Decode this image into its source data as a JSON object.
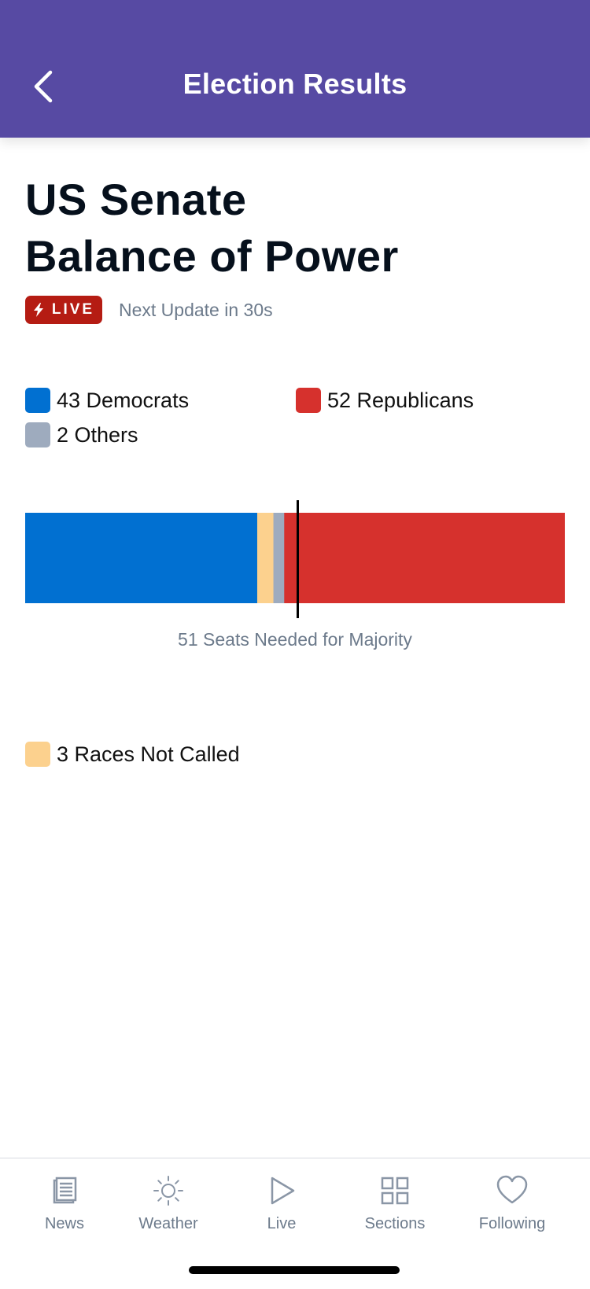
{
  "header": {
    "title": "Election Results",
    "background_color": "#574aa3"
  },
  "page": {
    "title_line1": "US Senate",
    "title_line2": "Balance of Power"
  },
  "status": {
    "live_label": "LIVE",
    "next_update": "Next Update in 30s"
  },
  "legend": {
    "democrats": {
      "label": "43 Democrats",
      "color": "#0170d1"
    },
    "republicans": {
      "label": "52 Republicans",
      "color": "#d6312d"
    },
    "others": {
      "label": "2 Others",
      "color": "#9eabbe"
    },
    "not_called": {
      "label": "3 Races Not Called",
      "color": "#fcd18e"
    }
  },
  "chart_data": {
    "type": "bar",
    "orientation": "horizontal-stacked",
    "total_seats": 100,
    "majority": 51,
    "categories": [
      "Democrats",
      "Not Called",
      "Others",
      "Republicans"
    ],
    "values": [
      43,
      3,
      2,
      52
    ],
    "colors": [
      "#0170d1",
      "#fcd18e",
      "#9eabbe",
      "#d6312d"
    ],
    "annotation": "51 Seats Needed for Majority"
  },
  "tabs": [
    {
      "id": "news",
      "label": "News",
      "icon": "news-icon"
    },
    {
      "id": "weather",
      "label": "Weather",
      "icon": "sun-icon"
    },
    {
      "id": "live",
      "label": "Live",
      "icon": "play-icon"
    },
    {
      "id": "sections",
      "label": "Sections",
      "icon": "grid-icon"
    },
    {
      "id": "following",
      "label": "Following",
      "icon": "heart-icon"
    }
  ]
}
